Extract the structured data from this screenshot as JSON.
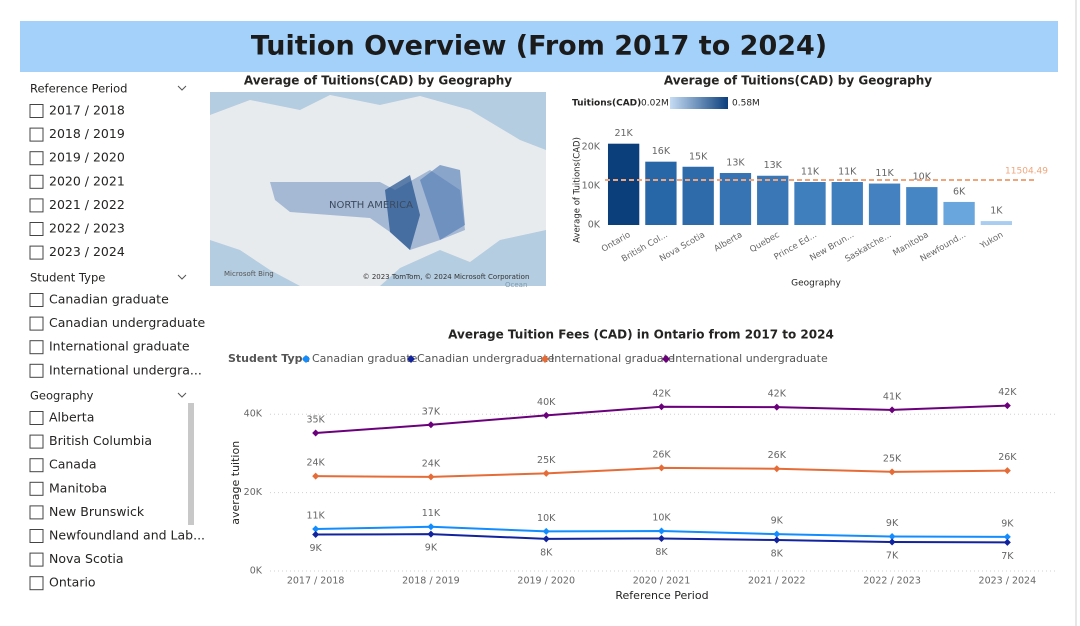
{
  "header": {
    "title": "Tuition Overview (From 2017 to 2024)"
  },
  "slicers": [
    {
      "title": "Reference Period",
      "items": [
        "2017 / 2018",
        "2018 / 2019",
        "2019 / 2020",
        "2020 / 2021",
        "2021 / 2022",
        "2022 / 2023",
        "2023 / 2024"
      ]
    },
    {
      "title": "Student Type",
      "items": [
        "Canadian graduate",
        "Canadian undergraduate",
        "International graduate",
        "International undergra..."
      ]
    },
    {
      "title": "Geography",
      "items": [
        "Alberta",
        "British Columbia",
        "Canada",
        "Manitoba",
        "New Brunswick",
        "Newfoundland and Lab...",
        "Nova Scotia",
        "Ontario"
      ]
    }
  ],
  "map": {
    "title": "Average of Tuitions(CAD) by Geography",
    "label": "NORTH AMERICA",
    "attribution": "Microsoft Bing",
    "copyright": "© 2023 TomTom, © 2024 Microsoft Corporation",
    "water_label": "Ocean"
  },
  "chart_data": [
    {
      "type": "bar",
      "title": "Average of Tuitions(CAD) by Geography",
      "color_legend": {
        "title": "Tuitions(CAD)",
        "min": {
          "value": 20000,
          "label": "0.02M"
        },
        "max": {
          "value": 580000,
          "label": "0.58M"
        },
        "colors": [
          "#c6dcf4",
          "#0b3f7c"
        ]
      },
      "categories": [
        "Ontario",
        "British Col...",
        "Nova Scotia",
        "Alberta",
        "Quebec",
        "Prince Ed...",
        "New Brun...",
        "Saskatche...",
        "Manitoba",
        "Newfound...",
        "Yukon"
      ],
      "values": [
        20800,
        16200,
        14900,
        13300,
        12600,
        11000,
        11000,
        10600,
        9700,
        5900,
        1000
      ],
      "value_labels": [
        "21K",
        "16K",
        "15K",
        "13K",
        "13K",
        "11K",
        "11K",
        "11K",
        "10K",
        "6K",
        "1K"
      ],
      "colors": [
        "#0b3f7c",
        "#2767a8",
        "#2d6bab",
        "#3674b3",
        "#3977b6",
        "#407fbe",
        "#407fbe",
        "#4381c0",
        "#4786c4",
        "#6aa6de",
        "#a9cdf1"
      ],
      "average_line": 11504.49,
      "average_color": "#f0a57c",
      "ylim": [
        0,
        22000
      ],
      "yticks": [
        {
          "value": 0,
          "label": "0K"
        },
        {
          "value": 10000,
          "label": "10K"
        },
        {
          "value": 20000,
          "label": "20K"
        }
      ],
      "y_label": "Average of Tuitions(CAD)",
      "x_label": "Geography"
    },
    {
      "type": "line",
      "title": "Average Tuition Fees (CAD) in Ontario from 2017 to 2024",
      "legend_title": "Student Type",
      "categories": [
        "2017 / 2018",
        "2018 / 2019",
        "2019 / 2020",
        "2020 / 2021",
        "2021 / 2022",
        "2022 / 2023",
        "2023 / 2024"
      ],
      "series": [
        {
          "name": "Canadian graduate",
          "color": "#118dff",
          "values": [
            10700,
            11300,
            10100,
            10200,
            9400,
            8800,
            8700
          ],
          "value_labels": [
            "11K",
            "11K",
            "10K",
            "10K",
            "9K",
            "9K",
            "9K"
          ]
        },
        {
          "name": "Canadian undergraduate",
          "color": "#12239e",
          "values": [
            9300,
            9400,
            8200,
            8300,
            7900,
            7400,
            7300
          ],
          "value_labels": [
            "9K",
            "9K",
            "8K",
            "8K",
            "8K",
            "7K",
            "7K"
          ]
        },
        {
          "name": "International graduate",
          "color": "#e66c37",
          "values": [
            24200,
            24000,
            24900,
            26300,
            26100,
            25300,
            25600
          ],
          "value_labels": [
            "24K",
            "24K",
            "25K",
            "26K",
            "26K",
            "25K",
            "26K"
          ]
        },
        {
          "name": "International undergraduate",
          "color": "#6b007b",
          "values": [
            35200,
            37300,
            39700,
            41900,
            41800,
            41100,
            42200
          ],
          "value_labels": [
            "35K",
            "37K",
            "40K",
            "42K",
            "42K",
            "41K",
            "42K"
          ]
        }
      ],
      "ylim": [
        0,
        45000
      ],
      "yticks": [
        {
          "value": 0,
          "label": "0K"
        },
        {
          "value": 20000,
          "label": "20K"
        },
        {
          "value": 40000,
          "label": "40K"
        }
      ],
      "y_label": "average tuition",
      "x_label": "Reference Period",
      "grid": true
    }
  ]
}
